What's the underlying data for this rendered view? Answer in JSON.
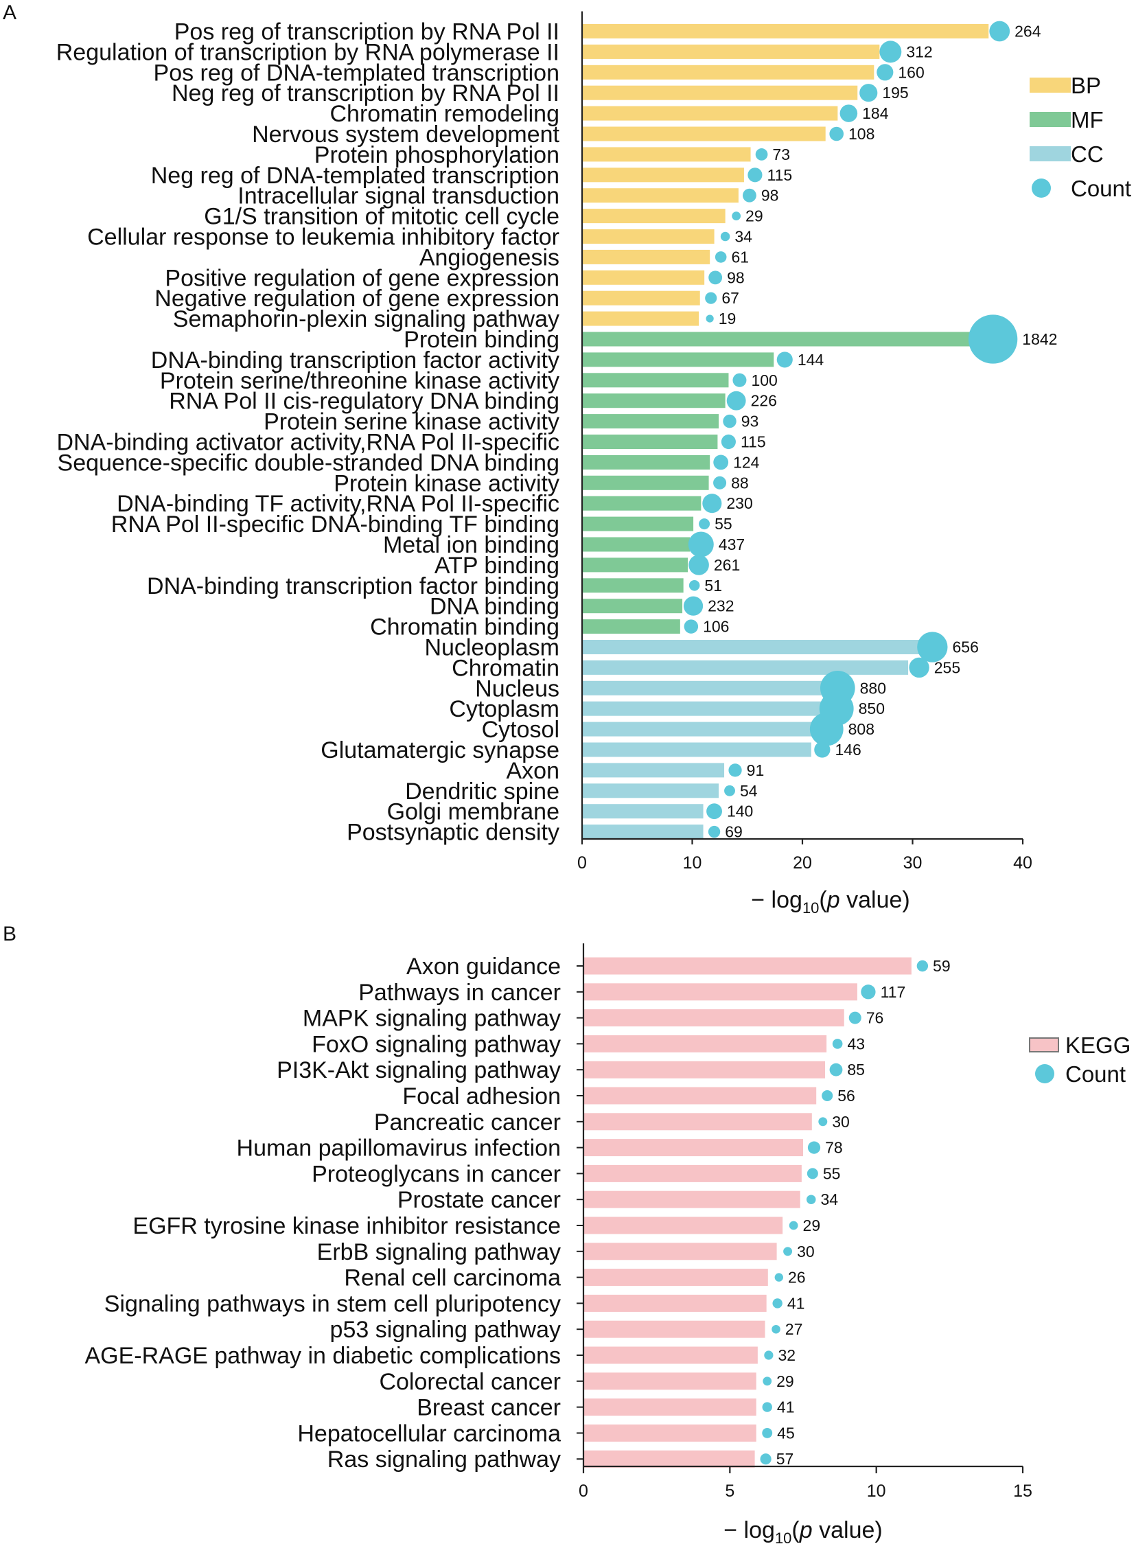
{
  "chart_data": [
    {
      "panel": "A",
      "type": "bar",
      "orientation": "horizontal",
      "xlabel_parts": [
        "− log",
        "10",
        "(",
        "p",
        " value)"
      ],
      "xlim": [
        0,
        40
      ],
      "xticks": [
        0,
        10,
        20,
        30,
        40
      ],
      "legend_position": "top-right",
      "legend": [
        {
          "label": "BP",
          "kind": "bar",
          "color": "#F8D67A"
        },
        {
          "label": "MF",
          "kind": "bar",
          "color": "#7FC996"
        },
        {
          "label": "CC",
          "kind": "bar",
          "color": "#9FD5DF"
        },
        {
          "label": "Count",
          "kind": "dot",
          "color": "#5CC8DA"
        }
      ],
      "dot_color": "#5CC8DA",
      "categories": [
        {
          "label": "Pos reg of transcription by RNA Pol II",
          "group": "BP",
          "value": 36.9,
          "count": 264
        },
        {
          "label": "Regulation of transcription by RNA polymerase II",
          "group": "BP",
          "value": 27.0,
          "count": 312
        },
        {
          "label": "Pos reg of DNA-templated transcription",
          "group": "BP",
          "value": 26.5,
          "count": 160
        },
        {
          "label": "Neg reg of transcription by RNA Pol II",
          "group": "BP",
          "value": 25.0,
          "count": 195
        },
        {
          "label": "Chromatin remodeling",
          "group": "BP",
          "value": 23.2,
          "count": 184
        },
        {
          "label": "Nervous system development",
          "group": "BP",
          "value": 22.1,
          "count": 108
        },
        {
          "label": "Protein phosphorylation",
          "group": "BP",
          "value": 15.3,
          "count": 73
        },
        {
          "label": "Neg reg of DNA-templated transcription",
          "group": "BP",
          "value": 14.7,
          "count": 115
        },
        {
          "label": "Intracellular signal transduction",
          "group": "BP",
          "value": 14.2,
          "count": 98
        },
        {
          "label": "G1/S transition of mitotic cell cycle",
          "group": "BP",
          "value": 13.0,
          "count": 29
        },
        {
          "label": "Cellular response to leukemia inhibitory factor",
          "group": "BP",
          "value": 12.0,
          "count": 34
        },
        {
          "label": "Angiogenesis",
          "group": "BP",
          "value": 11.6,
          "count": 61
        },
        {
          "label": "Positive regulation of gene expression",
          "group": "BP",
          "value": 11.1,
          "count": 98
        },
        {
          "label": "Negative regulation of gene expression",
          "group": "BP",
          "value": 10.7,
          "count": 67
        },
        {
          "label": "Semaphorin-plexin signaling pathway",
          "group": "BP",
          "value": 10.6,
          "count": 19
        },
        {
          "label": "Protein binding",
          "group": "MF",
          "value": 36.3,
          "count": 1842
        },
        {
          "label": "DNA-binding transcription factor activity",
          "group": "MF",
          "value": 17.4,
          "count": 144
        },
        {
          "label": "Protein serine/threonine kinase activity",
          "group": "MF",
          "value": 13.3,
          "count": 100
        },
        {
          "label": "RNA Pol II cis-regulatory DNA binding",
          "group": "MF",
          "value": 13.0,
          "count": 226
        },
        {
          "label": "Protein serine kinase activity",
          "group": "MF",
          "value": 12.4,
          "count": 93
        },
        {
          "label": "DNA-binding activator activity,RNA Pol II-specific",
          "group": "MF",
          "value": 12.3,
          "count": 115
        },
        {
          "label": "Sequence-specific double-stranded DNA binding",
          "group": "MF",
          "value": 11.6,
          "count": 124
        },
        {
          "label": "Protein kinase activity",
          "group": "MF",
          "value": 11.5,
          "count": 88
        },
        {
          "label": "DNA-binding TF activity,RNA Pol II-specific",
          "group": "MF",
          "value": 10.8,
          "count": 230
        },
        {
          "label": "RNA Pol II-specific DNA-binding TF binding",
          "group": "MF",
          "value": 10.1,
          "count": 55
        },
        {
          "label": "Metal ion binding",
          "group": "MF",
          "value": 9.8,
          "count": 437
        },
        {
          "label": "ATP binding",
          "group": "MF",
          "value": 9.6,
          "count": 261
        },
        {
          "label": "DNA-binding transcription factor binding",
          "group": "MF",
          "value": 9.2,
          "count": 51
        },
        {
          "label": "DNA binding",
          "group": "MF",
          "value": 9.1,
          "count": 232
        },
        {
          "label": "Chromatin binding",
          "group": "MF",
          "value": 8.9,
          "count": 106
        },
        {
          "label": "Nucleoplasm",
          "group": "CC",
          "value": 30.8,
          "count": 656
        },
        {
          "label": "Chromatin",
          "group": "CC",
          "value": 29.6,
          "count": 255
        },
        {
          "label": "Nucleus",
          "group": "CC",
          "value": 22.2,
          "count": 880
        },
        {
          "label": "Cytoplasm",
          "group": "CC",
          "value": 22.1,
          "count": 850
        },
        {
          "label": "Cytosol",
          "group": "CC",
          "value": 21.2,
          "count": 808
        },
        {
          "label": "Glutamatergic synapse",
          "group": "CC",
          "value": 20.8,
          "count": 146
        },
        {
          "label": "Axon",
          "group": "CC",
          "value": 12.9,
          "count": 91
        },
        {
          "label": "Dendritic spine",
          "group": "CC",
          "value": 12.4,
          "count": 54
        },
        {
          "label": "Golgi membrane",
          "group": "CC",
          "value": 11.0,
          "count": 140
        },
        {
          "label": "Postsynaptic density",
          "group": "CC",
          "value": 11.0,
          "count": 69
        }
      ]
    },
    {
      "panel": "B",
      "type": "bar",
      "orientation": "horizontal",
      "xlabel_parts": [
        "− log",
        "10",
        "(",
        "p",
        " value)"
      ],
      "xlim": [
        0,
        15
      ],
      "xticks": [
        0,
        5,
        10,
        15
      ],
      "legend_position": "top-right",
      "legend": [
        {
          "label": "KEGG",
          "kind": "bar",
          "color": "#F7C3C6"
        },
        {
          "label": "Count",
          "kind": "dot",
          "color": "#5CC8DA"
        }
      ],
      "dot_color": "#5CC8DA",
      "categories": [
        {
          "label": "Axon guidance",
          "group": "KEGG",
          "value": 11.2,
          "count": 59
        },
        {
          "label": "Pathways in cancer",
          "group": "KEGG",
          "value": 9.35,
          "count": 117
        },
        {
          "label": "MAPK signaling pathway",
          "group": "KEGG",
          "value": 8.9,
          "count": 76
        },
        {
          "label": "FoxO signaling pathway",
          "group": "KEGG",
          "value": 8.3,
          "count": 43
        },
        {
          "label": "PI3K-Akt signaling pathway",
          "group": "KEGG",
          "value": 8.25,
          "count": 85
        },
        {
          "label": "Focal adhesion",
          "group": "KEGG",
          "value": 7.95,
          "count": 56
        },
        {
          "label": "Pancreatic cancer",
          "group": "KEGG",
          "value": 7.8,
          "count": 30
        },
        {
          "label": "Human papillomavirus infection",
          "group": "KEGG",
          "value": 7.5,
          "count": 78
        },
        {
          "label": "Proteoglycans in cancer",
          "group": "KEGG",
          "value": 7.45,
          "count": 55
        },
        {
          "label": "Prostate cancer",
          "group": "KEGG",
          "value": 7.4,
          "count": 34
        },
        {
          "label": "EGFR tyrosine kinase inhibitor resistance",
          "group": "KEGG",
          "value": 6.8,
          "count": 29
        },
        {
          "label": "ErbB signaling pathway",
          "group": "KEGG",
          "value": 6.6,
          "count": 30
        },
        {
          "label": "Renal cell carcinoma",
          "group": "KEGG",
          "value": 6.3,
          "count": 26
        },
        {
          "label": "Signaling pathways in stem cell pluripotency",
          "group": "KEGG",
          "value": 6.25,
          "count": 41
        },
        {
          "label": "p53 signaling pathway",
          "group": "KEGG",
          "value": 6.2,
          "count": 27
        },
        {
          "label": "AGE-RAGE pathway in diabetic complications",
          "group": "KEGG",
          "value": 5.95,
          "count": 32
        },
        {
          "label": "Colorectal cancer",
          "group": "KEGG",
          "value": 5.9,
          "count": 29
        },
        {
          "label": "Breast cancer",
          "group": "KEGG",
          "value": 5.9,
          "count": 41
        },
        {
          "label": "Hepatocellular carcinoma",
          "group": "KEGG",
          "value": 5.9,
          "count": 45
        },
        {
          "label": "Ras signaling pathway",
          "group": "KEGG",
          "value": 5.85,
          "count": 57
        }
      ]
    }
  ]
}
